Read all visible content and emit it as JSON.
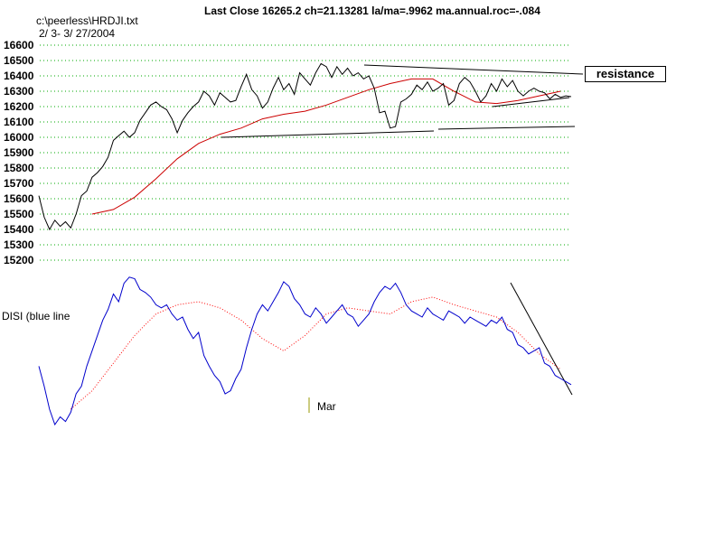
{
  "header": {
    "title": "Last Close 16265.2 ch=21.13281  la/ma=.9962 ma.annual.roc=-.084",
    "filename": "c:\\peerless\\HRDJI.txt",
    "date_range": "2/ 3- 3/ 27/2004"
  },
  "annotations": {
    "resistance": "resistance",
    "disi_label": "DISI (blue line",
    "month_marker": "Mar"
  },
  "colors": {
    "price": "#000000",
    "moving_average": "#cc0000",
    "disi": "#0000cc",
    "disi_ma": "#ff0000",
    "grid": "#00aa00",
    "month_marker": "#999900"
  },
  "chart_data": [
    {
      "type": "line",
      "yticks": [
        16600,
        16500,
        16400,
        16300,
        16200,
        16100,
        16000,
        15900,
        15800,
        15700,
        15600,
        15500,
        15400,
        15300,
        15200
      ],
      "ylim": [
        15200,
        16600
      ],
      "grid": true,
      "xlim": [
        0,
        100
      ],
      "series": [
        {
          "role": "price",
          "x": [
            0,
            1,
            2,
            3,
            4,
            5,
            6,
            7,
            8,
            9,
            10,
            11,
            12,
            13,
            14,
            15,
            16,
            17,
            18,
            19,
            20,
            21,
            22,
            23,
            24,
            25,
            26,
            27,
            28,
            29,
            30,
            31,
            32,
            33,
            34,
            35,
            36,
            37,
            38,
            39,
            40,
            41,
            42,
            43,
            44,
            45,
            46,
            47,
            48,
            49,
            50,
            51,
            52,
            53,
            54,
            55,
            56,
            57,
            58,
            59,
            60,
            61,
            62,
            63,
            64,
            65,
            66,
            67,
            68,
            69,
            70,
            71,
            72,
            73,
            74,
            75,
            76,
            77,
            78,
            79,
            80,
            81,
            82,
            83,
            84,
            85,
            86,
            87,
            88,
            89,
            90,
            91,
            92,
            93,
            94,
            95,
            96,
            97,
            98,
            99,
            100
          ],
          "values": [
            15620,
            15480,
            15400,
            15460,
            15420,
            15450,
            15410,
            15500,
            15620,
            15650,
            15740,
            15770,
            15810,
            15870,
            15980,
            16010,
            16040,
            16000,
            16030,
            16110,
            16160,
            16210,
            16230,
            16200,
            16180,
            16120,
            16030,
            16110,
            16160,
            16200,
            16230,
            16300,
            16270,
            16210,
            16290,
            16260,
            16230,
            16240,
            16330,
            16410,
            16310,
            16270,
            16190,
            16230,
            16320,
            16390,
            16310,
            16350,
            16280,
            16420,
            16380,
            16340,
            16420,
            16480,
            16460,
            16390,
            16460,
            16410,
            16450,
            16400,
            16420,
            16380,
            16400,
            16320,
            16160,
            16170,
            16060,
            16070,
            16230,
            16250,
            16280,
            16340,
            16310,
            16360,
            16300,
            16320,
            16350,
            16210,
            16240,
            16350,
            16390,
            16360,
            16300,
            16230,
            16270,
            16350,
            16300,
            16380,
            16330,
            16370,
            16300,
            16270,
            16300,
            16320,
            16300,
            16290,
            16250,
            16280,
            16260,
            16270,
            16265
          ]
        },
        {
          "role": "moving_average",
          "x": [
            10,
            14,
            18,
            22,
            26,
            30,
            34,
            38,
            42,
            46,
            50,
            54,
            58,
            62,
            66,
            70,
            74,
            78,
            82,
            86,
            90,
            94,
            98
          ],
          "values": [
            15500,
            15530,
            15610,
            15730,
            15860,
            15960,
            16020,
            16060,
            16120,
            16150,
            16170,
            16210,
            16260,
            16310,
            16350,
            16380,
            16380,
            16300,
            16230,
            16220,
            16240,
            16270,
            16300
          ]
        }
      ]
    },
    {
      "type": "line",
      "xlim": [
        0,
        100
      ],
      "series": [
        {
          "role": "disi",
          "x": [
            0,
            1,
            2,
            3,
            4,
            5,
            6,
            7,
            8,
            9,
            10,
            11,
            12,
            13,
            14,
            15,
            16,
            17,
            18,
            19,
            20,
            21,
            22,
            23,
            24,
            25,
            26,
            27,
            28,
            29,
            30,
            31,
            32,
            33,
            34,
            35,
            36,
            37,
            38,
            39,
            40,
            41,
            42,
            43,
            44,
            45,
            46,
            47,
            48,
            49,
            50,
            51,
            52,
            53,
            54,
            55,
            56,
            57,
            58,
            59,
            60,
            61,
            62,
            63,
            64,
            65,
            66,
            67,
            68,
            69,
            70,
            71,
            72,
            73,
            74,
            75,
            76,
            77,
            78,
            79,
            80,
            81,
            82,
            83,
            84,
            85,
            86,
            87,
            88,
            89,
            90,
            91,
            92,
            93,
            94,
            95,
            96,
            97,
            98,
            99,
            100
          ],
          "values": [
            38,
            25,
            10,
            0,
            5,
            2,
            8,
            20,
            25,
            38,
            48,
            58,
            68,
            75,
            85,
            80,
            92,
            96,
            95,
            88,
            86,
            83,
            78,
            76,
            78,
            72,
            68,
            70,
            62,
            56,
            60,
            45,
            38,
            32,
            28,
            20,
            22,
            30,
            36,
            50,
            62,
            72,
            78,
            74,
            80,
            86,
            93,
            90,
            82,
            78,
            72,
            70,
            76,
            72,
            66,
            70,
            74,
            78,
            72,
            70,
            64,
            68,
            72,
            80,
            86,
            90,
            88,
            92,
            86,
            78,
            74,
            72,
            70,
            76,
            72,
            70,
            68,
            74,
            72,
            70,
            66,
            70,
            68,
            66,
            64,
            68,
            66,
            70,
            62,
            60,
            52,
            50,
            46,
            48,
            50,
            40,
            38,
            32,
            30,
            28,
            26
          ]
        },
        {
          "role": "disi_moving_average",
          "x": [
            6,
            10,
            14,
            18,
            22,
            26,
            30,
            34,
            38,
            42,
            46,
            50,
            54,
            58,
            62,
            66,
            70,
            74,
            78,
            82,
            86,
            90,
            94,
            98
          ],
          "values": [
            10,
            22,
            40,
            58,
            72,
            78,
            80,
            76,
            68,
            56,
            48,
            58,
            72,
            76,
            74,
            72,
            80,
            83,
            78,
            74,
            70,
            60,
            46,
            36
          ]
        }
      ]
    }
  ]
}
